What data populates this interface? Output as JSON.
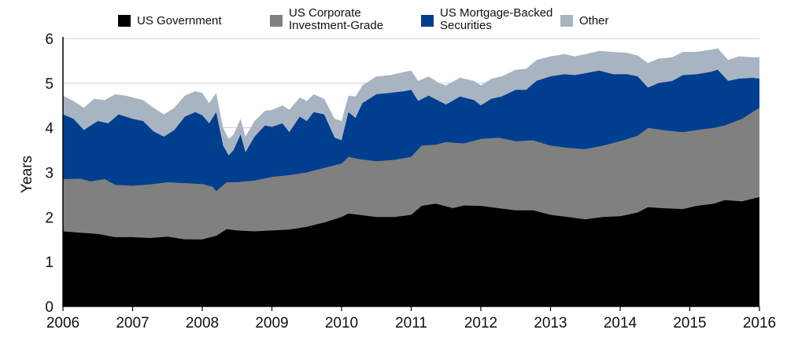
{
  "chart_data": {
    "type": "area",
    "stacked": true,
    "ylabel": "Years",
    "ylim": [
      0,
      6
    ],
    "xlim": [
      2006,
      2016
    ],
    "yticks": [
      "0",
      "1",
      "2",
      "3",
      "4",
      "5",
      "6"
    ],
    "xticks": [
      "2006",
      "2007",
      "2008",
      "2009",
      "2010",
      "2011",
      "2012",
      "2013",
      "2014",
      "2015",
      "2016"
    ],
    "grid": true,
    "legend_position": "top",
    "series": [
      {
        "name": "US Government",
        "color": "#000000",
        "points": [
          [
            2006.0,
            1.68
          ],
          [
            2006.25,
            1.65
          ],
          [
            2006.5,
            1.62
          ],
          [
            2006.75,
            1.55
          ],
          [
            2007.0,
            1.55
          ],
          [
            2007.25,
            1.53
          ],
          [
            2007.5,
            1.56
          ],
          [
            2007.75,
            1.5
          ],
          [
            2008.0,
            1.5
          ],
          [
            2008.2,
            1.58
          ],
          [
            2008.35,
            1.73
          ],
          [
            2008.5,
            1.7
          ],
          [
            2008.75,
            1.68
          ],
          [
            2009.0,
            1.7
          ],
          [
            2009.25,
            1.72
          ],
          [
            2009.5,
            1.78
          ],
          [
            2009.75,
            1.88
          ],
          [
            2010.0,
            2.0
          ],
          [
            2010.1,
            2.08
          ],
          [
            2010.25,
            2.05
          ],
          [
            2010.5,
            2.0
          ],
          [
            2010.75,
            2.0
          ],
          [
            2011.0,
            2.05
          ],
          [
            2011.15,
            2.25
          ],
          [
            2011.35,
            2.3
          ],
          [
            2011.6,
            2.2
          ],
          [
            2011.75,
            2.26
          ],
          [
            2012.0,
            2.25
          ],
          [
            2012.25,
            2.2
          ],
          [
            2012.5,
            2.15
          ],
          [
            2012.75,
            2.15
          ],
          [
            2013.0,
            2.05
          ],
          [
            2013.25,
            2.0
          ],
          [
            2013.5,
            1.95
          ],
          [
            2013.75,
            2.0
          ],
          [
            2014.0,
            2.02
          ],
          [
            2014.25,
            2.1
          ],
          [
            2014.4,
            2.22
          ],
          [
            2014.6,
            2.2
          ],
          [
            2014.9,
            2.18
          ],
          [
            2015.1,
            2.25
          ],
          [
            2015.35,
            2.3
          ],
          [
            2015.5,
            2.38
          ],
          [
            2015.75,
            2.35
          ],
          [
            2016.0,
            2.45
          ]
        ]
      },
      {
        "name": "US Corporate Investment-Grade",
        "color": "#808080",
        "points": [
          [
            2006.0,
            2.85
          ],
          [
            2006.25,
            2.86
          ],
          [
            2006.4,
            2.8
          ],
          [
            2006.6,
            2.85
          ],
          [
            2006.75,
            2.72
          ],
          [
            2007.0,
            2.7
          ],
          [
            2007.25,
            2.73
          ],
          [
            2007.5,
            2.78
          ],
          [
            2007.75,
            2.76
          ],
          [
            2008.0,
            2.74
          ],
          [
            2008.15,
            2.68
          ],
          [
            2008.2,
            2.58
          ],
          [
            2008.35,
            2.78
          ],
          [
            2008.5,
            2.78
          ],
          [
            2008.75,
            2.82
          ],
          [
            2009.0,
            2.9
          ],
          [
            2009.25,
            2.94
          ],
          [
            2009.5,
            3.0
          ],
          [
            2009.75,
            3.1
          ],
          [
            2010.0,
            3.2
          ],
          [
            2010.1,
            3.35
          ],
          [
            2010.25,
            3.3
          ],
          [
            2010.5,
            3.25
          ],
          [
            2010.75,
            3.28
          ],
          [
            2011.0,
            3.35
          ],
          [
            2011.15,
            3.6
          ],
          [
            2011.35,
            3.62
          ],
          [
            2011.5,
            3.68
          ],
          [
            2011.75,
            3.65
          ],
          [
            2012.0,
            3.75
          ],
          [
            2012.25,
            3.78
          ],
          [
            2012.5,
            3.7
          ],
          [
            2012.75,
            3.72
          ],
          [
            2013.0,
            3.6
          ],
          [
            2013.25,
            3.55
          ],
          [
            2013.5,
            3.52
          ],
          [
            2013.75,
            3.6
          ],
          [
            2014.0,
            3.7
          ],
          [
            2014.25,
            3.82
          ],
          [
            2014.4,
            4.0
          ],
          [
            2014.6,
            3.95
          ],
          [
            2014.9,
            3.9
          ],
          [
            2015.1,
            3.95
          ],
          [
            2015.35,
            4.0
          ],
          [
            2015.5,
            4.05
          ],
          [
            2015.75,
            4.2
          ],
          [
            2016.0,
            4.45
          ]
        ]
      },
      {
        "name": "US Mortgage-Backed Securities",
        "color": "#003f8f",
        "points": [
          [
            2006.0,
            4.3
          ],
          [
            2006.15,
            4.2
          ],
          [
            2006.3,
            3.95
          ],
          [
            2006.5,
            4.15
          ],
          [
            2006.65,
            4.1
          ],
          [
            2006.8,
            4.3
          ],
          [
            2007.0,
            4.2
          ],
          [
            2007.15,
            4.15
          ],
          [
            2007.3,
            3.92
          ],
          [
            2007.45,
            3.8
          ],
          [
            2007.6,
            3.95
          ],
          [
            2007.75,
            4.25
          ],
          [
            2007.9,
            4.35
          ],
          [
            2008.0,
            4.28
          ],
          [
            2008.1,
            4.1
          ],
          [
            2008.2,
            4.35
          ],
          [
            2008.3,
            3.6
          ],
          [
            2008.38,
            3.38
          ],
          [
            2008.45,
            3.5
          ],
          [
            2008.55,
            3.85
          ],
          [
            2008.62,
            3.45
          ],
          [
            2008.75,
            3.8
          ],
          [
            2008.9,
            4.05
          ],
          [
            2009.0,
            4.02
          ],
          [
            2009.15,
            4.1
          ],
          [
            2009.25,
            3.9
          ],
          [
            2009.4,
            4.25
          ],
          [
            2009.5,
            4.15
          ],
          [
            2009.6,
            4.35
          ],
          [
            2009.75,
            4.3
          ],
          [
            2009.9,
            3.78
          ],
          [
            2010.0,
            3.72
          ],
          [
            2010.1,
            4.35
          ],
          [
            2010.2,
            4.22
          ],
          [
            2010.3,
            4.55
          ],
          [
            2010.5,
            4.75
          ],
          [
            2010.7,
            4.78
          ],
          [
            2010.9,
            4.82
          ],
          [
            2011.0,
            4.85
          ],
          [
            2011.1,
            4.6
          ],
          [
            2011.25,
            4.72
          ],
          [
            2011.4,
            4.6
          ],
          [
            2011.5,
            4.52
          ],
          [
            2011.7,
            4.7
          ],
          [
            2011.9,
            4.62
          ],
          [
            2012.0,
            4.5
          ],
          [
            2012.15,
            4.65
          ],
          [
            2012.3,
            4.7
          ],
          [
            2012.5,
            4.85
          ],
          [
            2012.65,
            4.85
          ],
          [
            2012.8,
            5.05
          ],
          [
            2013.0,
            5.15
          ],
          [
            2013.2,
            5.2
          ],
          [
            2013.35,
            5.18
          ],
          [
            2013.5,
            5.22
          ],
          [
            2013.7,
            5.28
          ],
          [
            2013.9,
            5.2
          ],
          [
            2014.1,
            5.2
          ],
          [
            2014.25,
            5.15
          ],
          [
            2014.4,
            4.9
          ],
          [
            2014.55,
            5.0
          ],
          [
            2014.75,
            5.05
          ],
          [
            2014.9,
            5.18
          ],
          [
            2015.1,
            5.2
          ],
          [
            2015.3,
            5.25
          ],
          [
            2015.4,
            5.3
          ],
          [
            2015.55,
            5.05
          ],
          [
            2015.7,
            5.1
          ],
          [
            2015.9,
            5.12
          ],
          [
            2016.0,
            5.1
          ]
        ]
      },
      {
        "name": "Other",
        "color": "#a9b4c2",
        "points": [
          [
            2006.0,
            4.72
          ],
          [
            2006.15,
            4.6
          ],
          [
            2006.3,
            4.45
          ],
          [
            2006.45,
            4.65
          ],
          [
            2006.6,
            4.62
          ],
          [
            2006.75,
            4.75
          ],
          [
            2006.9,
            4.72
          ],
          [
            2007.0,
            4.68
          ],
          [
            2007.15,
            4.62
          ],
          [
            2007.3,
            4.45
          ],
          [
            2007.45,
            4.3
          ],
          [
            2007.6,
            4.45
          ],
          [
            2007.75,
            4.72
          ],
          [
            2007.9,
            4.82
          ],
          [
            2008.0,
            4.78
          ],
          [
            2008.1,
            4.55
          ],
          [
            2008.2,
            4.78
          ],
          [
            2008.3,
            4.0
          ],
          [
            2008.38,
            3.75
          ],
          [
            2008.45,
            3.85
          ],
          [
            2008.55,
            4.2
          ],
          [
            2008.62,
            3.8
          ],
          [
            2008.75,
            4.15
          ],
          [
            2008.9,
            4.38
          ],
          [
            2009.0,
            4.4
          ],
          [
            2009.15,
            4.5
          ],
          [
            2009.25,
            4.4
          ],
          [
            2009.4,
            4.68
          ],
          [
            2009.5,
            4.6
          ],
          [
            2009.6,
            4.75
          ],
          [
            2009.75,
            4.65
          ],
          [
            2009.9,
            4.2
          ],
          [
            2010.0,
            4.15
          ],
          [
            2010.1,
            4.72
          ],
          [
            2010.2,
            4.7
          ],
          [
            2010.3,
            4.95
          ],
          [
            2010.5,
            5.15
          ],
          [
            2010.7,
            5.18
          ],
          [
            2010.9,
            5.25
          ],
          [
            2011.0,
            5.28
          ],
          [
            2011.1,
            5.05
          ],
          [
            2011.25,
            5.15
          ],
          [
            2011.4,
            5.0
          ],
          [
            2011.5,
            4.95
          ],
          [
            2011.7,
            5.12
          ],
          [
            2011.9,
            5.05
          ],
          [
            2012.0,
            4.95
          ],
          [
            2012.15,
            5.1
          ],
          [
            2012.3,
            5.15
          ],
          [
            2012.5,
            5.3
          ],
          [
            2012.65,
            5.32
          ],
          [
            2012.8,
            5.52
          ],
          [
            2013.0,
            5.6
          ],
          [
            2013.2,
            5.65
          ],
          [
            2013.35,
            5.6
          ],
          [
            2013.5,
            5.65
          ],
          [
            2013.7,
            5.72
          ],
          [
            2013.9,
            5.7
          ],
          [
            2014.1,
            5.68
          ],
          [
            2014.25,
            5.62
          ],
          [
            2014.4,
            5.45
          ],
          [
            2014.55,
            5.55
          ],
          [
            2014.75,
            5.58
          ],
          [
            2014.9,
            5.7
          ],
          [
            2015.1,
            5.7
          ],
          [
            2015.3,
            5.75
          ],
          [
            2015.4,
            5.78
          ],
          [
            2015.55,
            5.52
          ],
          [
            2015.7,
            5.6
          ],
          [
            2015.9,
            5.58
          ],
          [
            2016.0,
            5.58
          ]
        ]
      }
    ],
    "legend": [
      {
        "lines": [
          "US Government"
        ],
        "color": "#000000"
      },
      {
        "lines": [
          "US Corporate",
          "Investment-Grade"
        ],
        "color": "#808080"
      },
      {
        "lines": [
          "US Mortgage-Backed",
          "Securities"
        ],
        "color": "#003f8f"
      },
      {
        "lines": [
          "Other"
        ],
        "color": "#a9b4c2"
      }
    ]
  }
}
